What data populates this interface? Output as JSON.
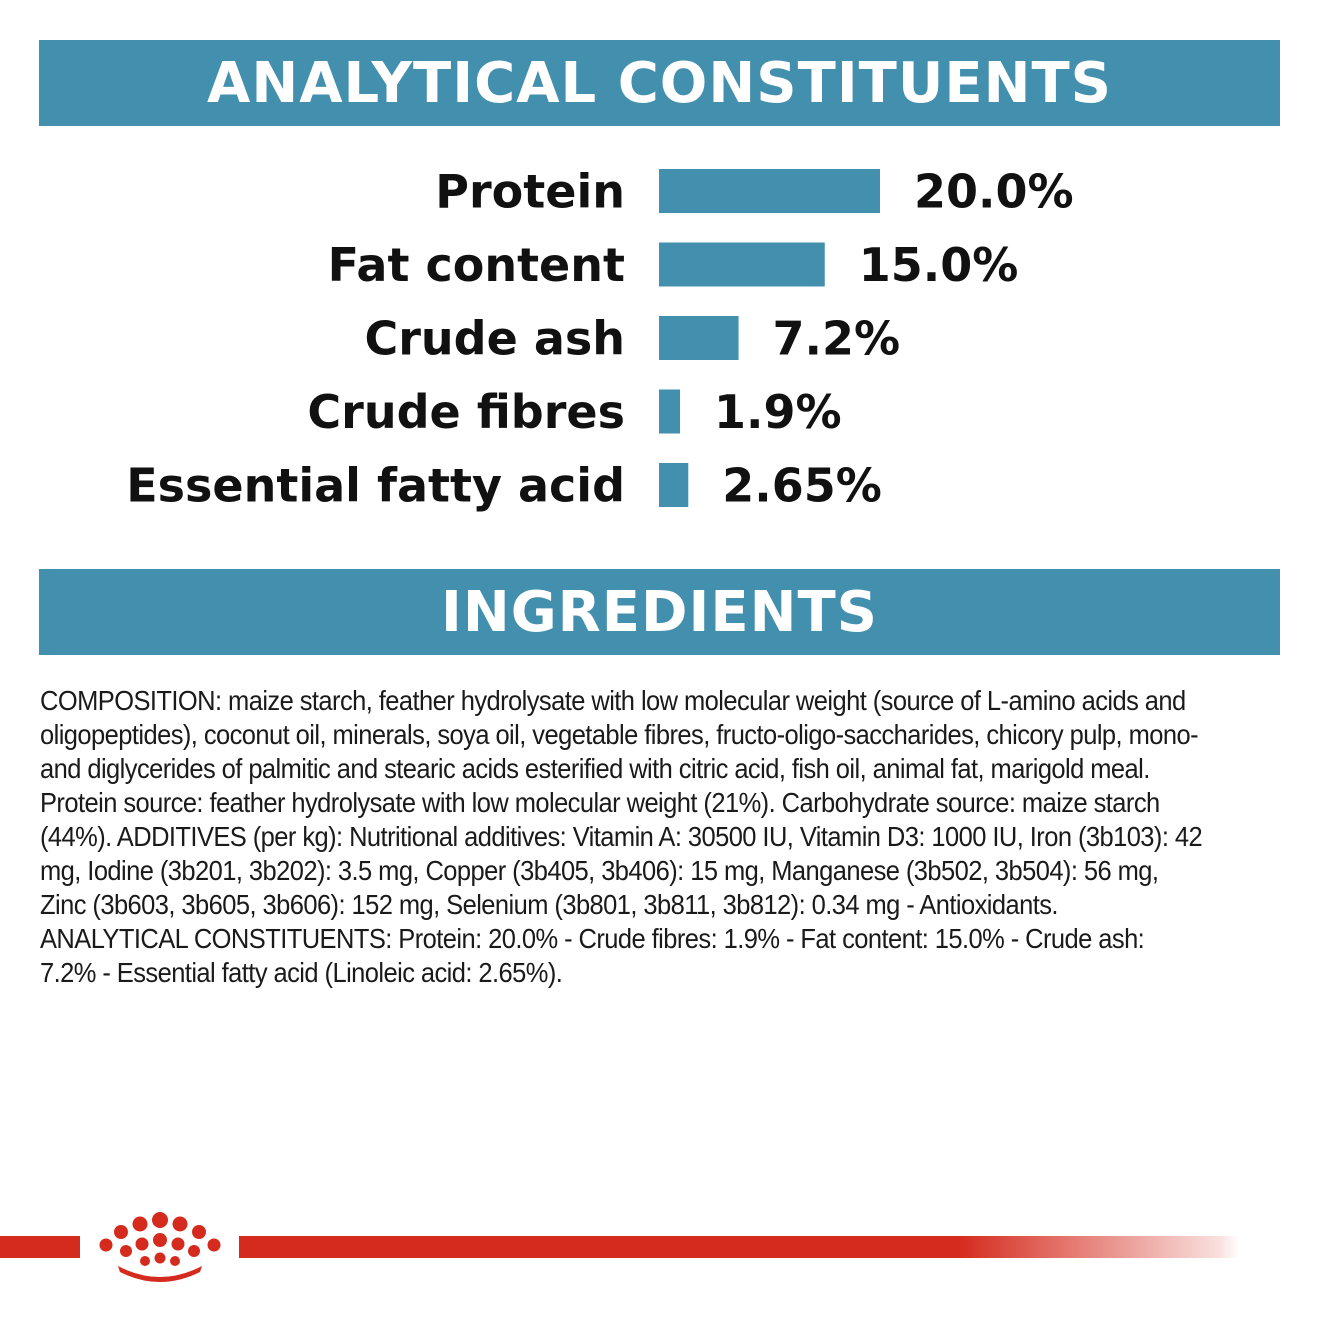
{
  "banners": {
    "analytical": "ANALYTICAL CONSTITUENTS",
    "ingredients": "INGREDIENTS"
  },
  "chart_data": {
    "type": "bar",
    "orientation": "horizontal",
    "categories": [
      "Protein",
      "Fat content",
      "Crude ash",
      "Crude fibres",
      "Essential fatty acid"
    ],
    "values": [
      20.0,
      15.0,
      7.2,
      1.9,
      2.65
    ],
    "value_labels": [
      "20.0%",
      "15.0%",
      "7.2%",
      "1.9%",
      "2.65%"
    ],
    "unit": "%",
    "title": "ANALYTICAL CONSTITUENTS",
    "bar_color": "#438fae",
    "grid": false,
    "legend": false
  },
  "ingredients": {
    "text": "COMPOSITION: maize starch, feather hydrolysate with low molecular weight (source of L-amino acids and oligopeptides), coconut oil, minerals, soya oil, vegetable fibres, fructo-oligo-saccharides, chicory pulp, mono- and diglycerides of palmitic and stearic acids esterified with citric acid, fish oil, animal fat, marigold meal. Protein source: feather hydrolysate with low molecular weight (21%). Carbohydrate source: maize starch (44%). ADDITIVES (per kg): Nutritional additives: Vitamin A: 30500 IU, Vitamin D3: 1000 IU, Iron (3b103): 42 mg, Iodine (3b201, 3b202): 3.5 mg, Copper (3b405, 3b406): 15 mg, Manganese (3b502, 3b504): 56 mg, Zinc (3b603, 3b605, 3b606): 152 mg, Selenium (3b801, 3b811, 3b812): 0.34 mg - Antioxidants. ANALYTICAL CONSTITUENTS: Protein: 20.0% - Crude fibres: 1.9% - Fat content: 15.0% - Crude ash: 7.2% - Essential fatty acid (Linoleic acid: 2.65%)."
  },
  "colors": {
    "banner": "#438fae",
    "brand_red": "#d52b1e"
  },
  "logo": {
    "icon": "crown-logo-icon"
  }
}
